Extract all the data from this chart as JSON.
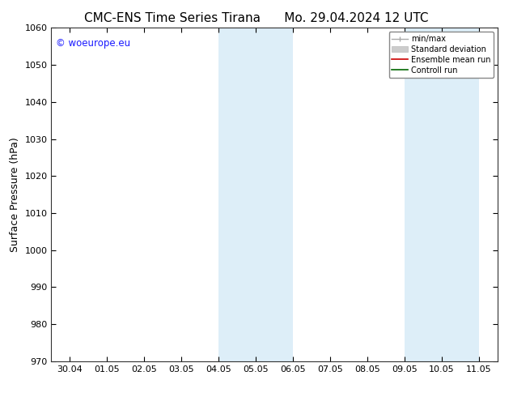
{
  "title_left": "CMC-ENS Time Series Tirana",
  "title_right": "Mo. 29.04.2024 12 UTC",
  "ylabel": "Surface Pressure (hPa)",
  "ylim": [
    970,
    1060
  ],
  "yticks": [
    970,
    980,
    990,
    1000,
    1010,
    1020,
    1030,
    1040,
    1050,
    1060
  ],
  "xtick_labels": [
    "30.04",
    "01.05",
    "02.05",
    "03.05",
    "04.05",
    "05.05",
    "06.05",
    "07.05",
    "08.05",
    "09.05",
    "10.05",
    "11.05"
  ],
  "shaded_bands": [
    {
      "xstart": 4,
      "xend": 5
    },
    {
      "xstart": 5,
      "xend": 6
    },
    {
      "xstart": 9,
      "xend": 10
    },
    {
      "xstart": 10,
      "xend": 11
    }
  ],
  "band_color": "#ddeef8",
  "copyright_text": "© woeurope.eu",
  "copyright_color": "#1a1aff",
  "legend_items": [
    {
      "label": "min/max",
      "color": "#aaaaaa",
      "lw": 1.0,
      "style": "minmax"
    },
    {
      "label": "Standard deviation",
      "color": "#cccccc",
      "lw": 6,
      "style": "fill"
    },
    {
      "label": "Ensemble mean run",
      "color": "#cc0000",
      "lw": 1.2,
      "style": "line"
    },
    {
      "label": "Controll run",
      "color": "#006600",
      "lw": 1.2,
      "style": "line"
    }
  ],
  "background_color": "#ffffff",
  "title_fontsize": 11,
  "tick_fontsize": 8,
  "ylabel_fontsize": 9,
  "xlim_left": -0.5,
  "xlim_right": 11.5
}
